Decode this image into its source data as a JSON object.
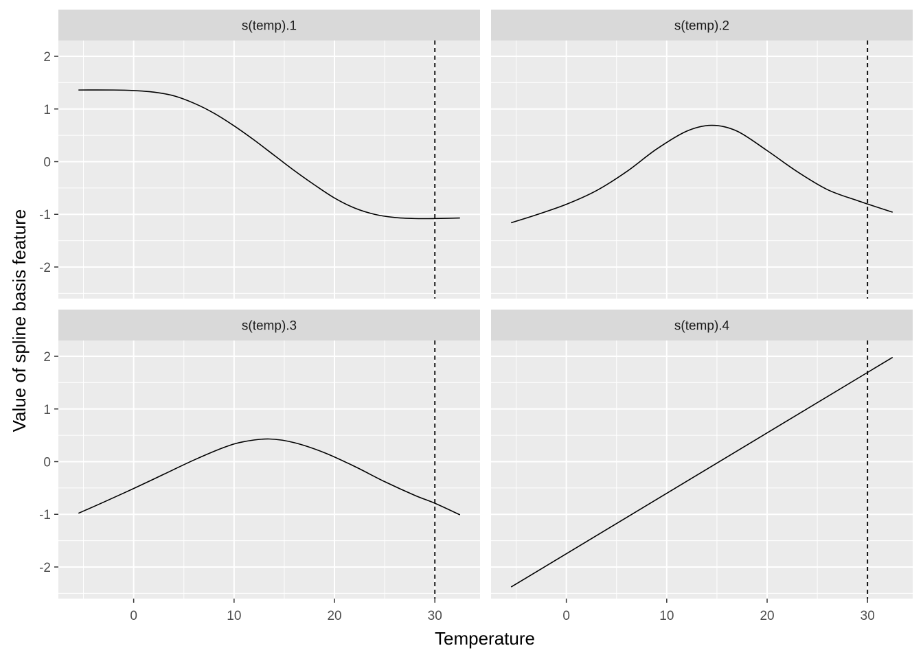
{
  "chart_data": {
    "type": "line",
    "layout": "facet_wrap",
    "xlabel": "Temperature",
    "ylabel": "Value of spline basis feature",
    "xlim": [
      -7.5,
      34.5
    ],
    "ylim": [
      -2.6,
      2.3
    ],
    "x_ticks": [
      0,
      10,
      20,
      30
    ],
    "x_tick_labels": [
      "0",
      "10",
      "20",
      "30"
    ],
    "y_ticks": [
      2,
      1,
      0,
      -1,
      -2
    ],
    "y_tick_labels": [
      "2",
      "1",
      "0",
      "-1",
      "-2"
    ],
    "vline_x": 30,
    "vline_style": "dashed",
    "grid": true,
    "colors": {
      "panel_bg": "#ebebeb",
      "strip_bg": "#d9d9d9",
      "grid": "#ffffff",
      "line": "#000000"
    },
    "panels": [
      {
        "strip": "s(temp).1",
        "x": [
          -5.5,
          -2,
          0,
          2,
          4,
          6,
          8,
          10,
          12,
          14,
          16,
          18,
          20,
          22,
          24,
          26,
          28,
          30,
          32.5
        ],
        "y": [
          1.36,
          1.36,
          1.35,
          1.32,
          1.25,
          1.11,
          0.92,
          0.68,
          0.41,
          0.12,
          -0.17,
          -0.44,
          -0.69,
          -0.88,
          -1.0,
          -1.06,
          -1.08,
          -1.08,
          -1.07
        ]
      },
      {
        "strip": "s(temp).2",
        "x": [
          -5.5,
          -3,
          0,
          3,
          6,
          9,
          12,
          14.5,
          17,
          20,
          23,
          26,
          29,
          32.5
        ],
        "y": [
          -1.16,
          -1.01,
          -0.81,
          -0.55,
          -0.19,
          0.24,
          0.58,
          0.69,
          0.58,
          0.21,
          -0.19,
          -0.53,
          -0.74,
          -0.96
        ]
      },
      {
        "strip": "s(temp).3",
        "x": [
          -5.5,
          -3,
          0,
          3,
          6,
          9,
          11,
          13.5,
          16,
          19,
          22,
          25,
          28,
          30,
          32.5
        ],
        "y": [
          -0.98,
          -0.77,
          -0.51,
          -0.24,
          0.03,
          0.27,
          0.38,
          0.43,
          0.36,
          0.17,
          -0.09,
          -0.38,
          -0.64,
          -0.79,
          -1.01
        ]
      },
      {
        "strip": "s(temp).4",
        "x": [
          -5.5,
          32.5
        ],
        "y": [
          -2.38,
          1.98
        ]
      }
    ]
  }
}
